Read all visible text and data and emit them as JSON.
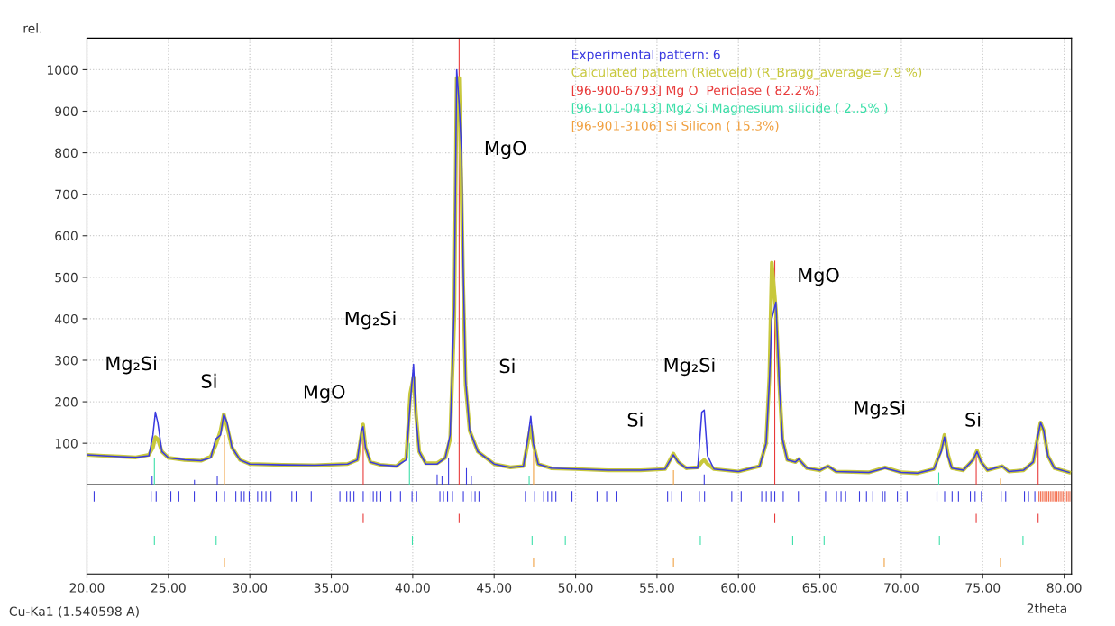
{
  "chart_data": {
    "type": "line",
    "xlabel": "2theta",
    "ylabel": "rel.",
    "xlim": [
      20,
      80.45
    ],
    "ylim": [
      -215,
      1076
    ],
    "xticks": [
      {
        "value": 20,
        "label": "20.00"
      },
      {
        "value": 25,
        "label": "25.00"
      },
      {
        "value": 30,
        "label": "30.00"
      },
      {
        "value": 35,
        "label": "35.00"
      },
      {
        "value": 40,
        "label": "40.00"
      },
      {
        "value": 45,
        "label": "45.00"
      },
      {
        "value": 50,
        "label": "50.00"
      },
      {
        "value": 55,
        "label": "55.00"
      },
      {
        "value": 60,
        "label": "60.00"
      },
      {
        "value": 65,
        "label": "65.00"
      },
      {
        "value": 70,
        "label": "70.00"
      },
      {
        "value": 75,
        "label": "75.00"
      },
      {
        "value": 80,
        "label": "80.00"
      }
    ],
    "yticks": [
      100,
      200,
      300,
      400,
      500,
      600,
      700,
      800,
      900,
      1000
    ],
    "grid": true,
    "legend": "top right",
    "ref_lines": [
      {
        "axis": "y",
        "value": 0,
        "color": "#000000"
      }
    ],
    "series": [
      {
        "name": "Experimental pattern: 6",
        "color": "#3a3ae0",
        "x": [
          20,
          21,
          22,
          23,
          23.8,
          24.05,
          24.2,
          24.35,
          24.6,
          25,
          26,
          27,
          27.6,
          27.9,
          28.2,
          28.4,
          28.6,
          28.9,
          29.4,
          30,
          32,
          34,
          36,
          36.6,
          36.85,
          36.95,
          37.1,
          37.4,
          38,
          39,
          39.6,
          39.85,
          40.05,
          40.2,
          40.4,
          40.8,
          41.5,
          42,
          42.3,
          42.55,
          42.7,
          42.85,
          43.0,
          43.1,
          43.25,
          43.5,
          44,
          45,
          46,
          46.8,
          47.1,
          47.25,
          47.4,
          47.7,
          48.5,
          50,
          52,
          54,
          55.5,
          56.0,
          56.3,
          56.8,
          57.5,
          57.75,
          57.9,
          58.1,
          58.5,
          60,
          61.3,
          61.7,
          61.9,
          62.05,
          62.3,
          62.5,
          62.7,
          63,
          63.5,
          63.7,
          64.2,
          65,
          65.5,
          66,
          68,
          69,
          70,
          71,
          72,
          72.45,
          72.65,
          72.85,
          73.1,
          73.8,
          74.4,
          74.65,
          74.9,
          75.3,
          76.2,
          76.6,
          77.5,
          78.1,
          78.35,
          78.55,
          78.75,
          79.0,
          79.4,
          80.3
        ],
        "values": [
          72,
          70,
          68,
          66,
          70,
          120,
          175,
          150,
          80,
          65,
          60,
          58,
          65,
          110,
          120,
          170,
          150,
          90,
          60,
          50,
          48,
          47,
          50,
          60,
          130,
          140,
          90,
          55,
          48,
          45,
          60,
          200,
          290,
          160,
          80,
          50,
          50,
          65,
          120,
          430,
          1000,
          920,
          800,
          520,
          250,
          130,
          80,
          50,
          42,
          45,
          120,
          165,
          100,
          50,
          40,
          38,
          35,
          35,
          38,
          72,
          55,
          40,
          40,
          175,
          180,
          70,
          38,
          32,
          45,
          100,
          250,
          400,
          440,
          250,
          110,
          60,
          55,
          62,
          40,
          35,
          45,
          32,
          30,
          40,
          30,
          28,
          38,
          80,
          115,
          70,
          40,
          35,
          60,
          80,
          55,
          35,
          45,
          32,
          35,
          55,
          110,
          150,
          130,
          70,
          40,
          30
        ]
      },
      {
        "name": "Calculated pattern (Rietveld) (R_Bragg_average=7.9 %)",
        "color": "#c8c83c",
        "x": [
          20,
          21,
          22,
          23,
          23.8,
          24.05,
          24.2,
          24.35,
          24.6,
          25,
          26,
          27,
          27.6,
          27.9,
          28.2,
          28.4,
          28.6,
          28.9,
          29.4,
          30,
          32,
          34,
          36,
          36.6,
          36.85,
          36.95,
          37.1,
          37.4,
          38,
          39,
          39.6,
          39.85,
          40.05,
          40.2,
          40.4,
          40.8,
          41.5,
          42,
          42.3,
          42.55,
          42.7,
          42.85,
          43.0,
          43.1,
          43.25,
          43.5,
          44,
          45,
          46,
          46.8,
          47.1,
          47.25,
          47.4,
          47.7,
          48.5,
          50,
          52,
          54,
          55.5,
          56.0,
          56.3,
          56.8,
          57.5,
          57.75,
          57.9,
          58.1,
          58.5,
          60,
          61.3,
          61.7,
          61.9,
          62.05,
          62.3,
          62.5,
          62.7,
          63,
          63.5,
          63.7,
          64.2,
          65,
          65.5,
          66,
          68,
          69,
          70,
          71,
          72,
          72.45,
          72.65,
          72.85,
          73.1,
          73.8,
          74.4,
          74.65,
          74.9,
          75.3,
          76.2,
          76.6,
          77.5,
          78.1,
          78.35,
          78.55,
          78.75,
          79.0,
          79.4,
          80.3
        ],
        "values": [
          72,
          70,
          68,
          66,
          72,
          90,
          115,
          110,
          80,
          65,
          60,
          58,
          68,
          95,
          130,
          170,
          140,
          90,
          60,
          50,
          48,
          47,
          50,
          60,
          120,
          145,
          90,
          55,
          48,
          45,
          65,
          220,
          260,
          170,
          80,
          52,
          52,
          65,
          110,
          400,
          980,
          980,
          700,
          480,
          240,
          130,
          80,
          50,
          42,
          45,
          110,
          140,
          100,
          50,
          40,
          38,
          35,
          35,
          38,
          75,
          55,
          40,
          42,
          55,
          60,
          50,
          38,
          32,
          45,
          100,
          260,
          535,
          420,
          250,
          110,
          60,
          55,
          62,
          40,
          35,
          45,
          32,
          30,
          42,
          30,
          28,
          38,
          85,
          120,
          75,
          40,
          35,
          60,
          82,
          55,
          35,
          45,
          32,
          35,
          55,
          110,
          150,
          130,
          70,
          40,
          30
        ]
      },
      {
        "type": "bar",
        "color": "#3a3ae0",
        "x": [
          20.44,
          23.94,
          24.25,
          25.15,
          25.64,
          26.59,
          27.97,
          28.44,
          29.14,
          29.45,
          29.65,
          29.96,
          30.48,
          30.75,
          30.99,
          31.3,
          32.58,
          32.84,
          33.77,
          35.53,
          35.95,
          36.15,
          36.39,
          36.96,
          37.38,
          37.58,
          37.78,
          38.04,
          38.66,
          39.25,
          39.96,
          40.24,
          41.67,
          41.89,
          42.14,
          42.44,
          43.11,
          43.59,
          43.83,
          44.07,
          46.92,
          47.49,
          48.04,
          48.3,
          48.52,
          48.79,
          49.78,
          51.32,
          51.91,
          52.49,
          55.65,
          55.91,
          56.52,
          57.6,
          57.92,
          59.59,
          60.17,
          61.43,
          61.71,
          61.99,
          62.23,
          62.75,
          63.68,
          65.35,
          66.02,
          66.3,
          66.58,
          67.43,
          67.86,
          68.25,
          68.85,
          69.0,
          69.76,
          70.35,
          72.19,
          72.66,
          73.12,
          73.51,
          74.24,
          74.53,
          74.92,
          76.13,
          76.41,
          77.56,
          77.81,
          78.2
        ],
        "base": [
          -40,
          -40,
          -40,
          -40,
          -40,
          -40,
          -40,
          -40,
          -40,
          -40,
          -40,
          -40,
          -40,
          -40,
          -40,
          -40,
          -40,
          -40,
          -40,
          -40,
          -40,
          -40,
          -40,
          -40,
          -40,
          -40,
          -40,
          -40,
          -40,
          -40,
          -40,
          -40,
          -40,
          -40,
          -40,
          -40,
          -40,
          -40,
          -40,
          -40,
          -40,
          -40,
          -40,
          -40,
          -40,
          -40,
          -40,
          -40,
          -40,
          -40,
          -40,
          -40,
          -40,
          -40,
          -40,
          -40,
          -40,
          -40,
          -40,
          -40,
          -40,
          -40,
          -40,
          -40,
          -40,
          -40,
          -40,
          -40,
          -40,
          -40,
          -40,
          -40,
          -40,
          -40,
          -40,
          -40,
          -40,
          -40,
          -40,
          -40,
          -40,
          -40,
          -40,
          -40,
          -40,
          -40
        ],
        "values": [
          25,
          25,
          25,
          25,
          25,
          25,
          25,
          25,
          25,
          25,
          25,
          25,
          25,
          25,
          25,
          25,
          25,
          25,
          25,
          25,
          25,
          25,
          25,
          25,
          25,
          25,
          25,
          25,
          25,
          25,
          25,
          25,
          25,
          25,
          25,
          25,
          25,
          25,
          25,
          25,
          25,
          25,
          25,
          25,
          25,
          25,
          25,
          25,
          25,
          25,
          25,
          25,
          25,
          25,
          25,
          25,
          25,
          25,
          25,
          25,
          25,
          25,
          25,
          25,
          25,
          25,
          25,
          25,
          25,
          25,
          25,
          25,
          25,
          25,
          25,
          25,
          25,
          25,
          25,
          25,
          25,
          25,
          25,
          25,
          25,
          25
        ]
      },
      {
        "type": "bar",
        "color": "#f47050",
        "x": [
          78.45,
          78.55,
          78.65,
          78.75,
          78.85,
          78.95,
          79.05,
          79.15,
          79.25,
          79.35,
          79.45,
          79.55,
          79.65,
          79.75,
          79.85,
          79.95,
          80.05,
          80.15,
          80.25,
          80.35
        ],
        "base": [
          -40,
          -40,
          -40,
          -40,
          -40,
          -40,
          -40,
          -40,
          -40,
          -40,
          -40,
          -40,
          -40,
          -40,
          -40,
          -40,
          -40,
          -40,
          -40,
          -40
        ],
        "values": [
          25,
          25,
          25,
          25,
          25,
          25,
          25,
          25,
          25,
          25,
          25,
          25,
          25,
          25,
          25,
          25,
          25,
          25,
          25,
          25
        ]
      },
      {
        "type": "bar",
        "color": "#3a3ae0",
        "x": [
          24.0,
          26.6,
          28.0,
          41.5,
          41.8,
          42.2,
          43.3,
          43.6,
          57.9
        ],
        "values": [
          20,
          12,
          20,
          25,
          20,
          65,
          40,
          20,
          25
        ]
      },
      {
        "name": "[96-900-6793] Mg O  Periclase ( 82.2%)",
        "type": "bar",
        "color": "#e83a3a",
        "x": [
          36.96,
          42.85,
          62.23,
          74.6,
          78.4
        ],
        "base": [
          -92,
          -92,
          -92,
          -92,
          -92
        ],
        "values": [
          22,
          22,
          22,
          22,
          22
        ]
      },
      {
        "type": "bar",
        "color": "#e83a3a",
        "x": [
          36.96,
          42.85,
          62.23,
          74.6,
          78.4
        ],
        "values": [
          112,
          1076,
          540,
          75,
          100
        ]
      },
      {
        "name": "[96-101-0413] Mg2 Si Magnesium silicide ( 2..5% )",
        "type": "bar",
        "color": "#3adfa8",
        "x": [
          24.14,
          27.93,
          39.98,
          47.33,
          49.37,
          57.66,
          63.33,
          65.26,
          72.34,
          77.47
        ],
        "base": [
          -145,
          -145,
          -145,
          -145,
          -145,
          -145,
          -145,
          -145,
          -145,
          -145
        ],
        "values": [
          22,
          22,
          22,
          22,
          22,
          22,
          22,
          22,
          22,
          22
        ]
      },
      {
        "type": "bar",
        "color": "#3adfa8",
        "x": [
          24.14,
          39.8,
          47.15,
          72.3
        ],
        "values": [
          65,
          100,
          20,
          30
        ]
      },
      {
        "name": "[96-901-3106] Si Silicon ( 15.3%)",
        "type": "bar",
        "color": "#f0a040",
        "x": [
          28.44,
          47.42,
          56.01,
          68.95,
          76.09
        ],
        "base": [
          -198,
          -198,
          -198,
          -198,
          -198
        ],
        "values": [
          22,
          22,
          22,
          22,
          22
        ]
      },
      {
        "type": "bar",
        "color": "#f0a040",
        "x": [
          28.44,
          47.42,
          56.01,
          76.09
        ],
        "values": [
          120,
          80,
          35,
          15
        ]
      }
    ],
    "annotations": [
      "Mg₂Si",
      "Si",
      "MgO",
      "Mg₂Si",
      "MgO",
      "Si",
      "Si",
      "Mg₂Si",
      "MgO",
      "Mg₂Si",
      "Si",
      "Cu-Ka1 (1.540598 A)"
    ]
  }
}
